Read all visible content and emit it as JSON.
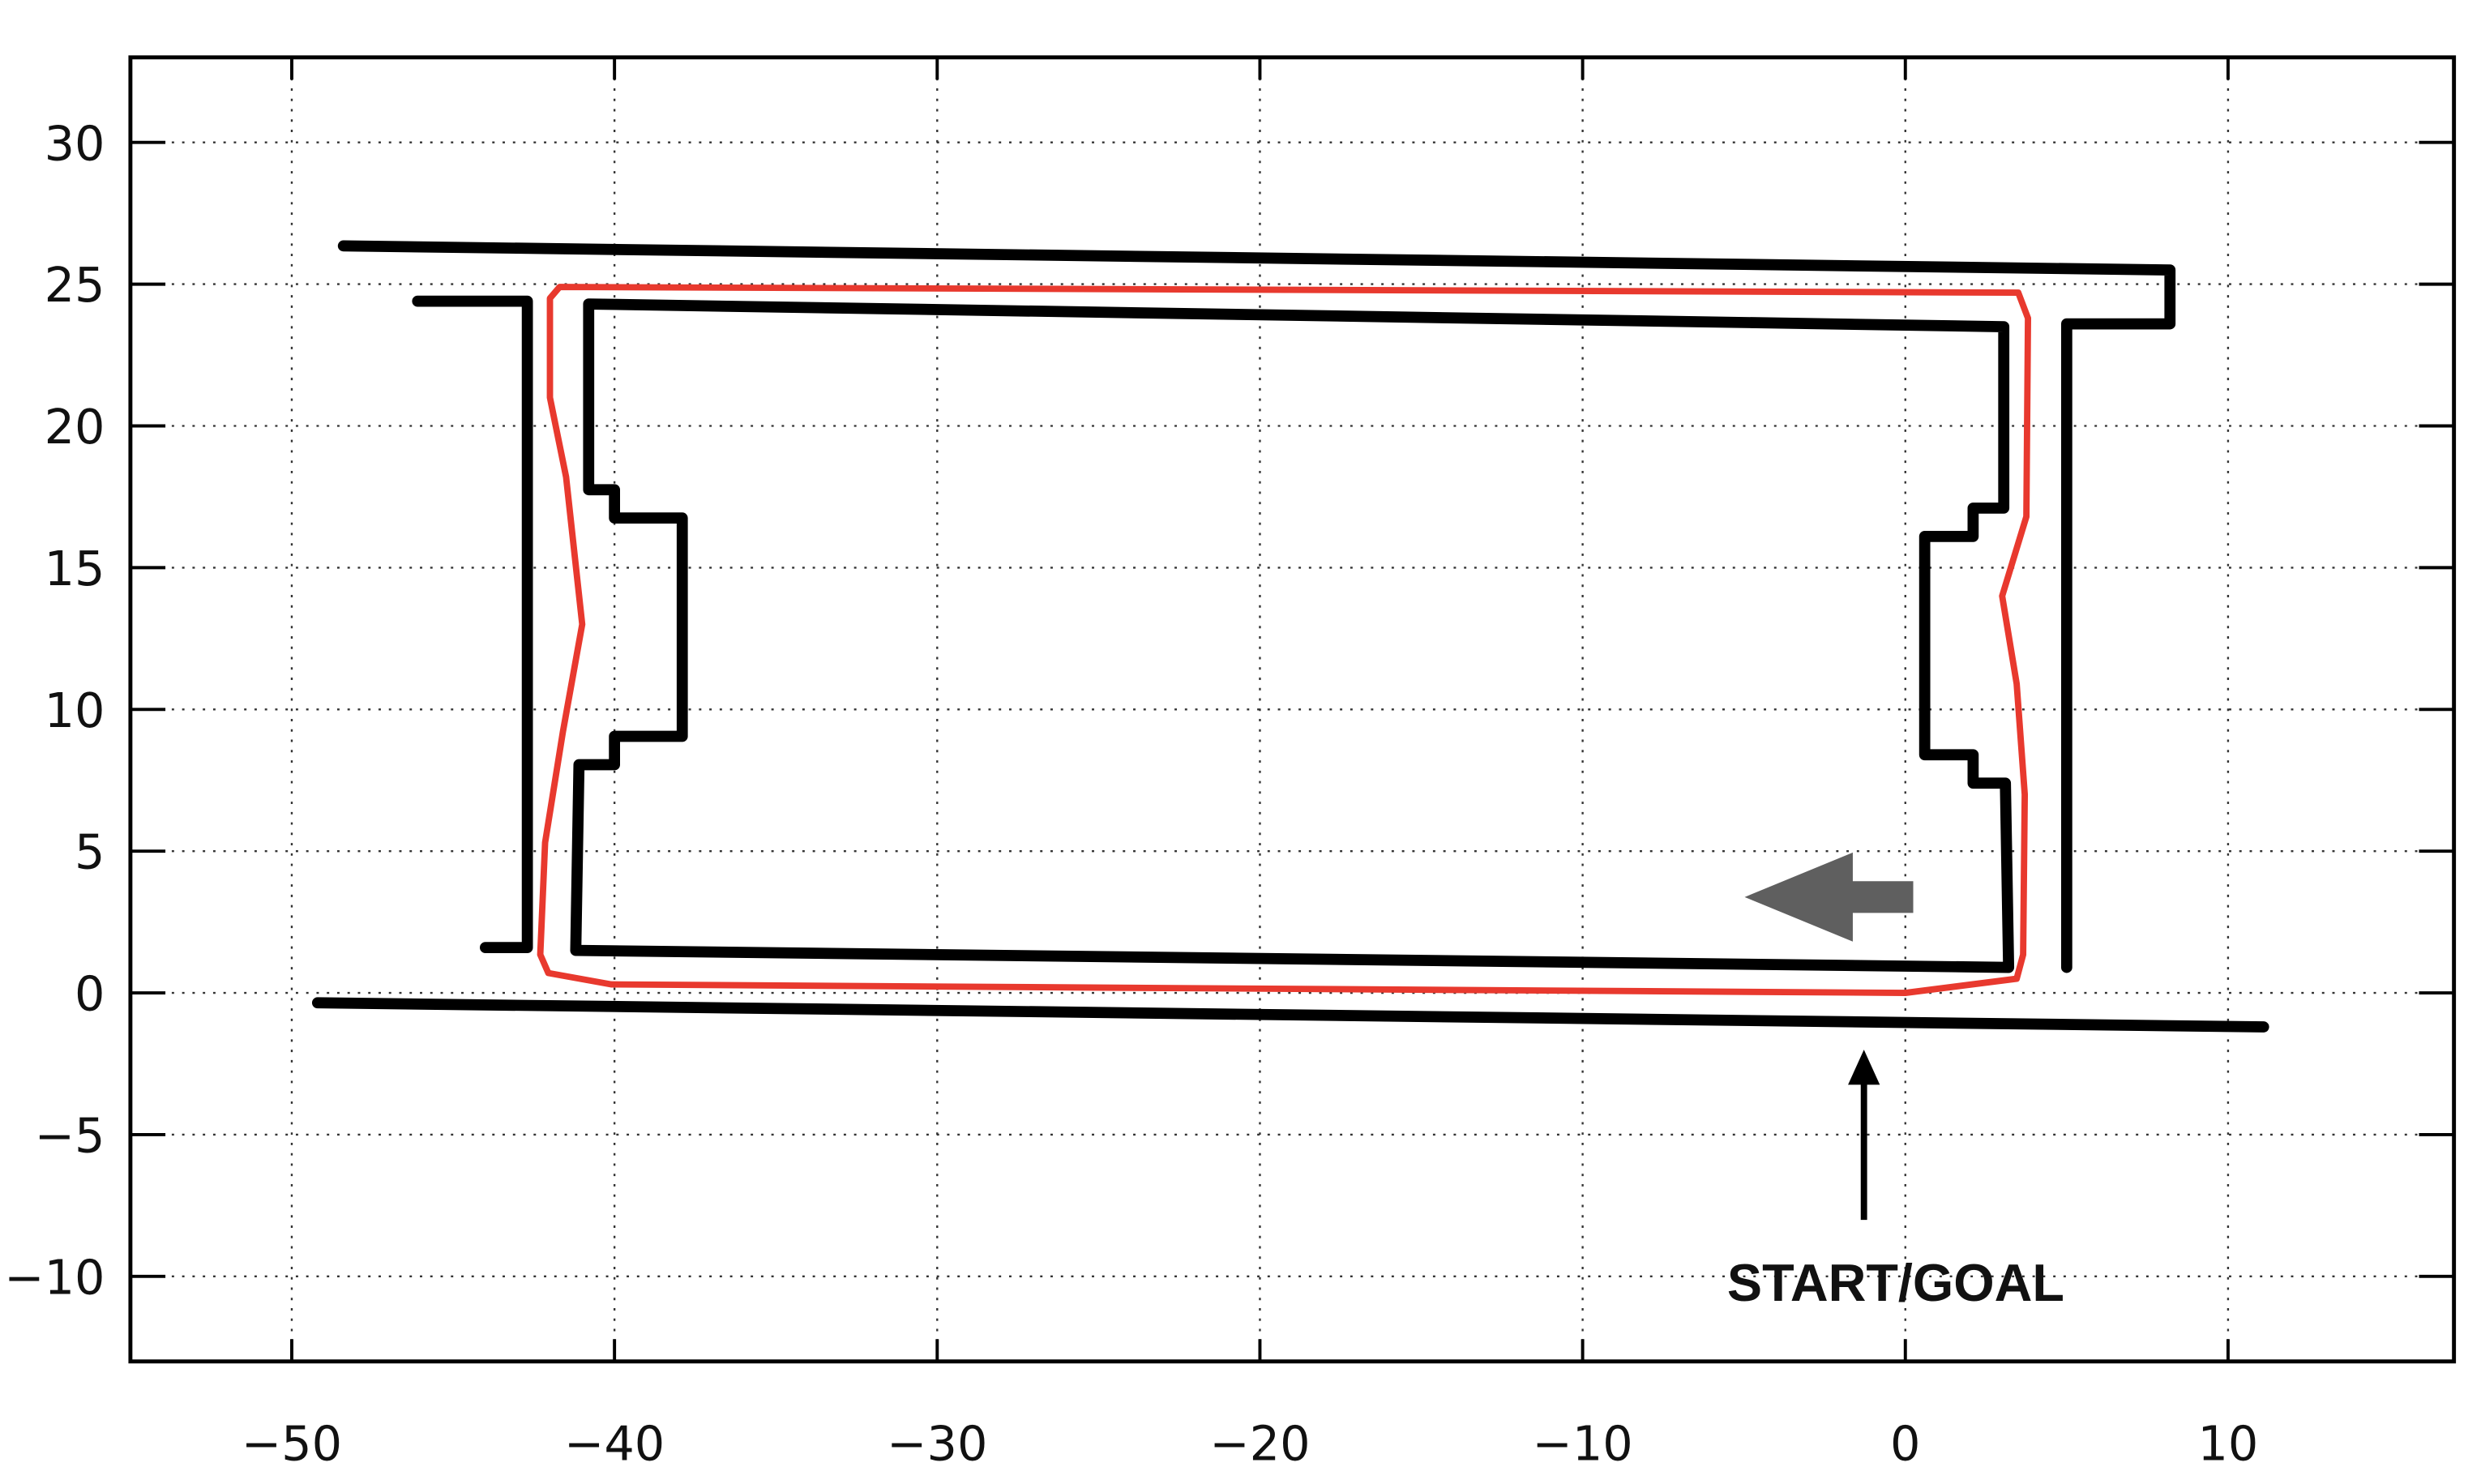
{
  "chart_data": {
    "type": "line",
    "annotation": "START/GOAL",
    "xlim": [
      -55,
      17
    ],
    "ylim": [
      -13,
      33
    ],
    "xticks": [
      {
        "value": -50,
        "label": "−50"
      },
      {
        "value": -40,
        "label": "−40"
      },
      {
        "value": -30,
        "label": "−30"
      },
      {
        "value": -20,
        "label": "−20"
      },
      {
        "value": -10,
        "label": "−10"
      },
      0,
      10
    ],
    "yticks": [
      30,
      25,
      20,
      15,
      10,
      5,
      0,
      {
        "value": -5,
        "label": "−5"
      },
      {
        "value": -10,
        "label": "−10"
      }
    ],
    "grid": true,
    "series": [
      {
        "color": "#e8392e",
        "x": [
          0,
          -40.1,
          -42.05,
          -42.3,
          -42.15,
          -41.6,
          -41,
          -41.5,
          -42,
          -42,
          -41.7,
          3.5,
          3.8,
          3.75,
          3,
          3.45,
          3.7,
          3.65,
          3.45,
          0
        ],
        "y": [
          0,
          0.3,
          0.7,
          1.35,
          5.3,
          9.2,
          13,
          18.2,
          21,
          24.5,
          24.9,
          24.7,
          23.8,
          16.8,
          14,
          10.9,
          7,
          1.35,
          0.5,
          0
        ]
      },
      {
        "color": "#000000",
        "x": [
          3.05,
          -40.8,
          -40.8,
          -40,
          -40,
          -37.9,
          -37.9,
          -40,
          -40,
          -41.1,
          -41.2,
          3.2,
          3.1,
          2.1,
          2.1,
          0.6,
          0.6,
          2.1,
          2.1,
          3.05,
          3.05
        ],
        "y": [
          23.5,
          24.3,
          17.75,
          17.75,
          16.75,
          16.75,
          9.05,
          9.05,
          8.05,
          8.05,
          1.5,
          0.9,
          7.4,
          7.4,
          8.4,
          8.4,
          16.1,
          16.1,
          17.1,
          17.1,
          23.5
        ]
      },
      {
        "color": "#000000",
        "x": [
          -48.4,
          8.2,
          8.2,
          5,
          5
        ],
        "y": [
          26.35,
          25.5,
          23.6,
          23.6,
          0.9
        ]
      },
      {
        "color": "#000000",
        "x": [
          -46.1,
          -42.7,
          -42.7,
          -44
        ],
        "y": [
          24.4,
          24.4,
          1.6,
          1.6
        ]
      },
      {
        "color": "#000000",
        "x": [
          -49.2,
          11.1
        ],
        "y": [
          -0.35,
          -1.2
        ]
      }
    ]
  }
}
